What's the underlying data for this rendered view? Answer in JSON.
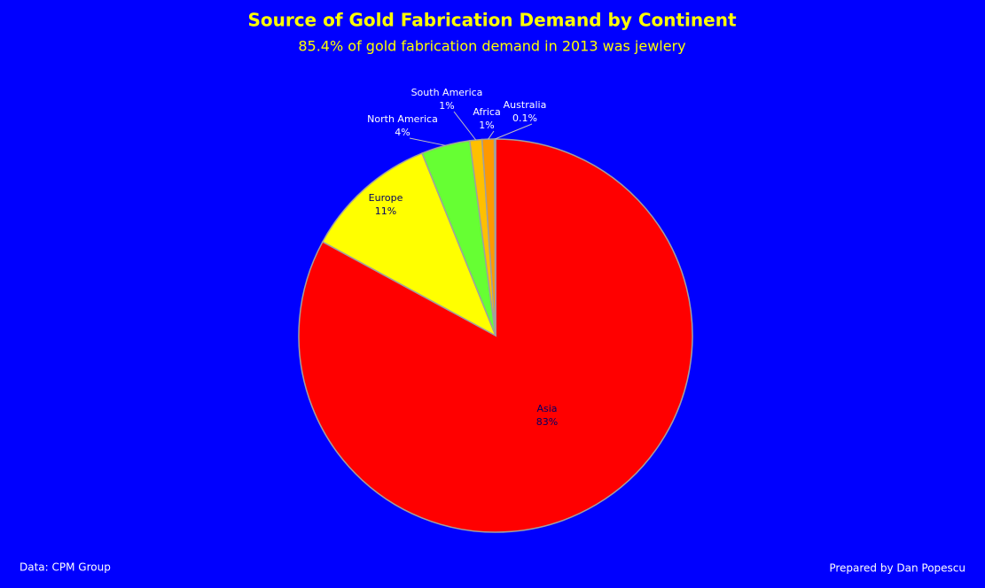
{
  "chart_data": {
    "type": "pie",
    "title": "Source of Gold Fabrication Demand by Continent",
    "subtitle": "85.4% of gold fabrication demand in 2013 was jewlery",
    "categories": [
      "Asia",
      "Europe",
      "North America",
      "South America",
      "Africa",
      "Australia"
    ],
    "values": [
      83,
      11,
      4,
      1,
      1,
      0.1
    ],
    "value_labels": [
      "83%",
      "11%",
      "4%",
      "1%",
      "1%",
      "0.1%"
    ],
    "colors": [
      "#ff0000",
      "#ffff00",
      "#66ff33",
      "#ffc000",
      "#ff9900",
      "#4f81bd"
    ],
    "source": "Data: CPM Group",
    "credit": "Prepared by Dan Popescu"
  }
}
